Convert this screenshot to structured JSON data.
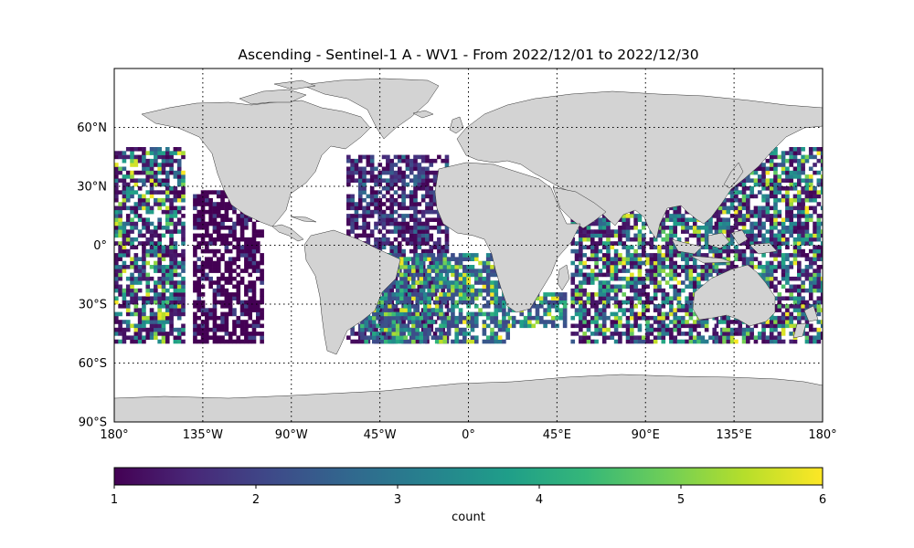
{
  "title": "Ascending - Sentinel-1 A - WV1 - From 2022/12/01 to 2022/12/30",
  "map": {
    "projection": "plate-carree",
    "lon_range": [
      -180,
      180
    ],
    "lat_range": [
      -90,
      90
    ],
    "land_color": "#d3d3d3",
    "gridlines": "dotted",
    "lat_ticks": [
      {
        "value": 60,
        "label": "60°N"
      },
      {
        "value": 30,
        "label": "30°N"
      },
      {
        "value": 0,
        "label": "0°"
      },
      {
        "value": -30,
        "label": "30°S"
      },
      {
        "value": -60,
        "label": "60°S"
      },
      {
        "value": -90,
        "label": "90°S"
      }
    ],
    "lon_ticks": [
      {
        "value": -180,
        "label": "180°"
      },
      {
        "value": -135,
        "label": "135°W"
      },
      {
        "value": -90,
        "label": "90°W"
      },
      {
        "value": -45,
        "label": "45°W"
      },
      {
        "value": 0,
        "label": "0°"
      },
      {
        "value": 45,
        "label": "45°E"
      },
      {
        "value": 90,
        "label": "90°E"
      },
      {
        "value": 135,
        "label": "135°E"
      },
      {
        "value": 180,
        "label": "180°"
      }
    ]
  },
  "chart_data": {
    "type": "heatmap",
    "title": "Ascending - Sentinel-1 A - WV1 - From 2022/12/01 to 2022/12/30",
    "x_axis": "longitude",
    "y_axis": "latitude",
    "value_range": [
      1,
      6
    ],
    "colormap": "viridis",
    "data_lat_range": [
      -50,
      50
    ],
    "swath_regions": [
      {
        "lon_range": [
          -180,
          -145
        ],
        "lat_range": [
          -50,
          50
        ],
        "typical_count": [
          1,
          6
        ]
      },
      {
        "lon_range": [
          -140,
          -105
        ],
        "lat_range": [
          -50,
          28
        ],
        "typical_count": [
          1,
          2
        ]
      },
      {
        "lon_range": [
          -62,
          -10
        ],
        "lat_range": [
          -50,
          46
        ],
        "typical_count": [
          1,
          3
        ]
      },
      {
        "lon_range": [
          -55,
          20
        ],
        "lat_range": [
          -50,
          -5
        ],
        "typical_count": [
          2,
          6
        ]
      },
      {
        "lon_range": [
          20,
          50
        ],
        "lat_range": [
          -42,
          -25
        ],
        "typical_count": [
          2,
          6
        ]
      },
      {
        "lon_range": [
          52,
          130
        ],
        "lat_range": [
          -50,
          20
        ],
        "typical_count": [
          1,
          6
        ]
      },
      {
        "lon_range": [
          125,
          180
        ],
        "lat_range": [
          -50,
          50
        ],
        "typical_count": [
          1,
          6
        ]
      }
    ]
  },
  "colorbar": {
    "label": "count",
    "ticks": [
      {
        "value": 1,
        "label": "1"
      },
      {
        "value": 2,
        "label": "2"
      },
      {
        "value": 3,
        "label": "3"
      },
      {
        "value": 4,
        "label": "4"
      },
      {
        "value": 5,
        "label": "5"
      },
      {
        "value": 6,
        "label": "6"
      }
    ],
    "stops": [
      "#440154",
      "#482878",
      "#3e4a89",
      "#31688e",
      "#26828e",
      "#1f9e89",
      "#35b779",
      "#6ece58",
      "#b5de2b",
      "#fde725"
    ]
  }
}
